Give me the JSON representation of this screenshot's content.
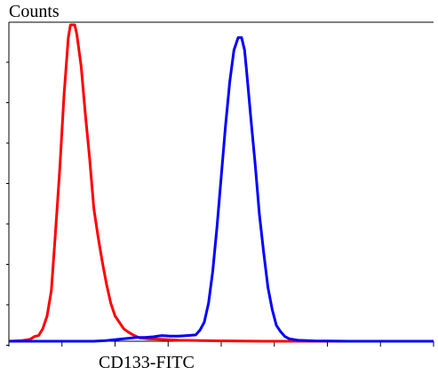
{
  "chart_data": {
    "type": "line",
    "title": "",
    "ylabel": "Counts",
    "xlabel": "CD133-FITC",
    "xlim": [
      0,
      100
    ],
    "ylim": [
      0,
      100
    ],
    "grid": false,
    "legend": "none",
    "series": [
      {
        "color": "#ff0000",
        "points": [
          [
            0,
            0
          ],
          [
            3,
            0.2
          ],
          [
            5,
            0.6
          ],
          [
            6,
            1.5
          ],
          [
            7,
            1.8
          ],
          [
            8,
            4
          ],
          [
            9,
            8
          ],
          [
            10,
            16
          ],
          [
            11,
            35
          ],
          [
            12,
            55
          ],
          [
            13,
            78
          ],
          [
            14,
            96
          ],
          [
            14.5,
            100
          ],
          [
            15.5,
            100
          ],
          [
            16,
            97
          ],
          [
            17,
            87
          ],
          [
            18,
            72
          ],
          [
            19,
            58
          ],
          [
            20,
            42
          ],
          [
            21,
            33
          ],
          [
            22,
            25
          ],
          [
            23,
            18
          ],
          [
            24,
            12
          ],
          [
            25,
            8
          ],
          [
            26,
            6
          ],
          [
            27,
            4
          ],
          [
            28,
            3
          ],
          [
            29,
            2.2
          ],
          [
            30,
            1.5
          ],
          [
            31,
            1
          ],
          [
            33,
            0.8
          ],
          [
            36,
            0.6
          ],
          [
            40,
            0.3
          ],
          [
            45,
            0.2
          ],
          [
            50,
            0.1
          ],
          [
            60,
            0
          ],
          [
            70,
            0
          ],
          [
            100,
            0
          ]
        ]
      },
      {
        "color": "#0000ff",
        "points": [
          [
            0,
            0
          ],
          [
            20,
            0
          ],
          [
            23,
            0.2
          ],
          [
            25,
            0.5
          ],
          [
            27,
            0.8
          ],
          [
            30,
            1.2
          ],
          [
            32,
            1.2
          ],
          [
            34,
            1.4
          ],
          [
            36,
            1.8
          ],
          [
            38,
            1.6
          ],
          [
            40,
            1.6
          ],
          [
            42,
            1.8
          ],
          [
            44,
            2
          ],
          [
            45,
            3.5
          ],
          [
            46,
            6
          ],
          [
            47,
            12
          ],
          [
            48,
            22
          ],
          [
            49,
            36
          ],
          [
            50,
            52
          ],
          [
            51,
            68
          ],
          [
            52,
            82
          ],
          [
            53,
            92
          ],
          [
            54,
            96
          ],
          [
            54.8,
            96
          ],
          [
            55.5,
            92
          ],
          [
            56,
            85
          ],
          [
            57,
            70
          ],
          [
            58,
            56
          ],
          [
            59,
            40
          ],
          [
            60,
            28
          ],
          [
            61,
            17
          ],
          [
            62,
            10
          ],
          [
            63,
            5
          ],
          [
            64,
            3
          ],
          [
            65,
            1.5
          ],
          [
            66,
            0.8
          ],
          [
            68,
            0.3
          ],
          [
            72,
            0.1
          ],
          [
            80,
            0
          ],
          [
            100,
            0
          ]
        ]
      }
    ]
  }
}
